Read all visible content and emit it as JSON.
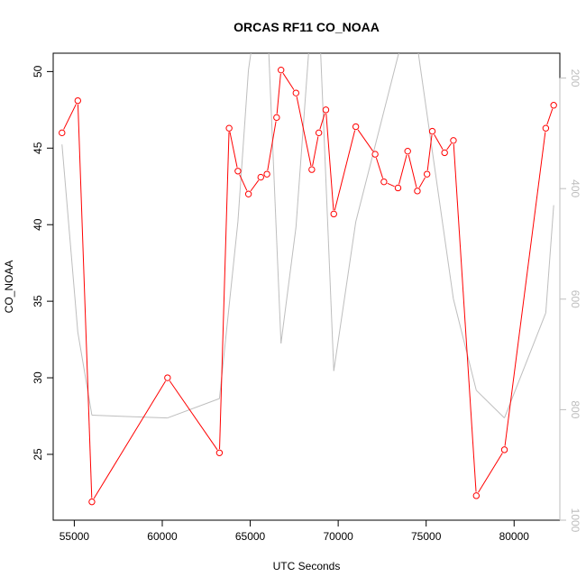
{
  "chart_data": {
    "type": "line",
    "title": "ORCAS RF11 CO_NOAA",
    "xlabel": "UTC Seconds",
    "ylabel": "CO_NOAA",
    "xlim": [
      53800,
      82600
    ],
    "ylim": [
      20.7,
      51.2
    ],
    "y2lim": [
      1000,
      155
    ],
    "y2_reversed": true,
    "x_ticks": [
      55000,
      60000,
      65000,
      70000,
      75000,
      80000
    ],
    "y_ticks": [
      25,
      30,
      35,
      40,
      45,
      50
    ],
    "y2_ticks": [
      200,
      400,
      600,
      800,
      1000
    ],
    "grid": false,
    "series": [
      {
        "role": "primary",
        "color": "#ff0000",
        "marker": "open-circle",
        "x": [
          54300,
          55200,
          56000,
          60300,
          63250,
          63800,
          64300,
          64900,
          65600,
          65950,
          66500,
          66750,
          67600,
          68500,
          68900,
          69300,
          69750,
          71000,
          72100,
          72600,
          73400,
          73950,
          74500,
          75050,
          75350,
          76050,
          76550,
          77850,
          79450,
          81800,
          82250
        ],
        "y": [
          46.0,
          48.1,
          21.9,
          30.0,
          25.1,
          46.3,
          43.5,
          42.0,
          43.1,
          43.3,
          47.0,
          50.1,
          48.6,
          43.6,
          46.0,
          47.5,
          40.7,
          46.4,
          44.6,
          42.8,
          42.4,
          44.8,
          42.2,
          43.3,
          46.1,
          44.7,
          45.5,
          22.3,
          25.3,
          46.3,
          47.8
        ]
      },
      {
        "role": "secondary",
        "color": "#bebebe",
        "x": [
          54300,
          55200,
          56000,
          60300,
          63250,
          64300,
          64900,
          65400,
          65950,
          66750,
          67600,
          68500,
          68900,
          69750,
          71000,
          73400,
          73600,
          74500,
          74600,
          76550,
          77850,
          79450,
          81800,
          82250
        ],
        "y2": [
          320,
          660,
          810,
          815,
          780,
          460,
          185,
          75,
          75,
          680,
          470,
          75,
          75,
          730,
          460,
          160,
          140,
          140,
          165,
          600,
          765,
          815,
          625,
          430
        ]
      }
    ]
  }
}
